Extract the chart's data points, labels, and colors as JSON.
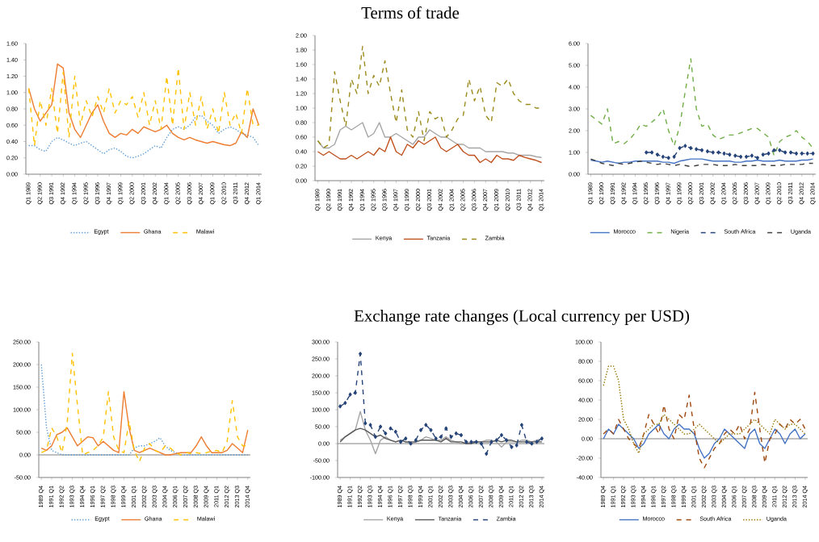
{
  "chart_data": [
    {
      "type": "line",
      "legend": "bottom",
      "ylim": [
        0,
        1.6
      ],
      "yticks": [
        {
          "value": 0,
          "label": "0.00"
        },
        {
          "value": 0.2,
          "label": "0.20"
        },
        {
          "value": 0.4,
          "label": "0.40"
        },
        {
          "value": 0.6,
          "label": "0.60"
        },
        {
          "value": 0.8,
          "label": "0.80"
        },
        {
          "value": 1.0,
          "label": "1.00"
        },
        {
          "value": 1.2,
          "label": "1.20"
        },
        {
          "value": 1.4,
          "label": "1.40"
        },
        {
          "value": 1.6,
          "label": "1.60"
        }
      ],
      "categories": [
        "Q1 1989",
        null,
        "Q2 1990",
        null,
        "Q3 1991",
        null,
        "Q4 1992",
        null,
        "Q1 1994",
        null,
        "Q2 1995",
        null,
        "Q3 1996",
        null,
        "Q4 1997",
        null,
        "Q1 1999",
        null,
        "Q2 2000",
        null,
        "Q3 2001",
        null,
        "Q4 2002",
        null,
        "Q1 2004",
        null,
        "Q2 2005",
        null,
        "Q3 2006",
        null,
        "Q4 2007",
        null,
        "Q1 2009",
        null,
        "Q2 2010",
        null,
        "Q3 2011",
        null,
        "Q4 2012",
        null,
        "Q1 2014"
      ],
      "series": [
        {
          "name": "Egypt",
          "color": "#5b9bd5",
          "line_style": "dotted",
          "values": [
            0.35,
            0.35,
            0.3,
            0.28,
            0.4,
            0.45,
            0.42,
            0.38,
            0.35,
            0.38,
            0.4,
            0.35,
            0.3,
            0.25,
            0.3,
            0.32,
            0.28,
            0.22,
            0.2,
            0.22,
            0.25,
            0.3,
            0.35,
            0.32,
            0.45,
            0.55,
            0.58,
            0.55,
            0.6,
            0.7,
            0.72,
            0.65,
            0.6,
            0.5,
            0.55,
            0.58,
            0.55,
            0.5,
            0.48,
            0.45,
            0.35
          ]
        },
        {
          "name": "Ghana",
          "color": "#ed7d31",
          "line_style": "solid",
          "values": [
            1.05,
            0.8,
            0.65,
            0.75,
            0.85,
            1.35,
            1.3,
            0.75,
            0.55,
            0.45,
            0.6,
            0.75,
            0.85,
            0.65,
            0.5,
            0.45,
            0.5,
            0.48,
            0.55,
            0.5,
            0.58,
            0.55,
            0.52,
            0.55,
            0.6,
            0.5,
            0.45,
            0.42,
            0.45,
            0.42,
            0.4,
            0.38,
            0.4,
            0.38,
            0.36,
            0.35,
            0.38,
            0.52,
            0.45,
            0.8,
            0.6
          ]
        },
        {
          "name": "Malawi",
          "color": "#ffc000",
          "line_style": "dashed",
          "values": [
            1.05,
            0.35,
            0.9,
            0.6,
            1.05,
            0.5,
            1.25,
            0.45,
            1.2,
            0.6,
            0.9,
            0.7,
            0.95,
            0.75,
            1.05,
            0.75,
            0.9,
            0.85,
            0.95,
            0.7,
            1.0,
            0.6,
            0.9,
            0.55,
            1.2,
            0.6,
            1.3,
            0.55,
            1.0,
            0.6,
            0.95,
            0.55,
            0.8,
            0.5,
            1.0,
            0.6,
            0.75,
            0.5,
            1.05,
            0.6,
            0.6
          ]
        }
      ]
    },
    {
      "type": "line",
      "title": "Terms of trade",
      "legend": "bottom",
      "ylim": [
        0,
        2.0
      ],
      "yticks": [
        {
          "value": 0,
          "label": "0.00"
        },
        {
          "value": 0.2,
          "label": "0.20"
        },
        {
          "value": 0.4,
          "label": "0.40"
        },
        {
          "value": 0.6,
          "label": "0.60"
        },
        {
          "value": 0.8,
          "label": "0.80"
        },
        {
          "value": 1.0,
          "label": "1.00"
        },
        {
          "value": 1.2,
          "label": "1.20"
        },
        {
          "value": 1.4,
          "label": "1.40"
        },
        {
          "value": 1.6,
          "label": "1.60"
        },
        {
          "value": 1.8,
          "label": "1.80"
        },
        {
          "value": 2.0,
          "label": "2.00"
        }
      ],
      "categories": [
        "Q1 1989",
        null,
        "Q2 1990",
        null,
        "Q3 1991",
        null,
        "Q4 1992",
        null,
        "Q1 1994",
        null,
        "Q2 1995",
        null,
        "Q3 1996",
        null,
        "Q4 1997",
        null,
        "Q1 1999",
        null,
        "Q2 2000",
        null,
        "Q3 2001",
        null,
        "Q4 2002",
        null,
        "Q1 2004",
        null,
        "Q2 2005",
        null,
        "Q3 2006",
        null,
        "Q4 2007",
        null,
        "Q1 2009",
        null,
        "Q2 2010",
        null,
        "Q3 2011",
        null,
        "Q4 2012",
        null,
        "Q1 2014"
      ],
      "series": [
        {
          "name": "Kenya",
          "color": "#a5a5a5",
          "line_style": "solid",
          "values": [
            0.55,
            0.45,
            0.45,
            0.5,
            0.7,
            0.75,
            0.7,
            0.75,
            0.8,
            0.6,
            0.65,
            0.8,
            0.6,
            0.6,
            0.65,
            0.6,
            0.55,
            0.5,
            0.6,
            0.6,
            0.7,
            0.65,
            0.6,
            0.6,
            0.55,
            0.5,
            0.5,
            0.45,
            0.45,
            0.45,
            0.4,
            0.4,
            0.4,
            0.4,
            0.38,
            0.38,
            0.35,
            0.35,
            0.35,
            0.33,
            0.32
          ]
        },
        {
          "name": "Tanzania",
          "color": "#c0501e",
          "line_style": "solid",
          "values": [
            0.4,
            0.35,
            0.4,
            0.35,
            0.3,
            0.3,
            0.35,
            0.3,
            0.35,
            0.4,
            0.35,
            0.45,
            0.4,
            0.6,
            0.4,
            0.35,
            0.5,
            0.45,
            0.55,
            0.5,
            0.55,
            0.6,
            0.45,
            0.4,
            0.45,
            0.5,
            0.4,
            0.35,
            0.35,
            0.25,
            0.3,
            0.25,
            0.35,
            0.3,
            0.3,
            0.28,
            0.35,
            0.32,
            0.3,
            0.28,
            0.25
          ]
        },
        {
          "name": "Zambia",
          "color": "#9c8a1c",
          "line_style": "dashed",
          "values": [
            0.55,
            0.45,
            0.5,
            1.5,
            1.1,
            0.75,
            1.4,
            1.2,
            1.85,
            1.2,
            1.45,
            1.3,
            1.65,
            1.2,
            0.8,
            1.25,
            0.7,
            0.6,
            0.95,
            0.55,
            0.95,
            0.85,
            0.9,
            0.6,
            0.7,
            0.85,
            0.9,
            1.4,
            1.1,
            1.3,
            0.9,
            0.8,
            1.35,
            1.3,
            1.4,
            1.2,
            1.1,
            1.05,
            1.05,
            1.0,
            1.0
          ]
        }
      ]
    },
    {
      "type": "line",
      "legend": "bottom",
      "ylim": [
        0,
        6
      ],
      "yticks": [
        {
          "value": 0,
          "label": "0.00"
        },
        {
          "value": 1,
          "label": "1.00"
        },
        {
          "value": 2,
          "label": "2.00"
        },
        {
          "value": 3,
          "label": "3.00"
        },
        {
          "value": 4,
          "label": "4.00"
        },
        {
          "value": 5,
          "label": "5.00"
        },
        {
          "value": 6,
          "label": "6.00"
        }
      ],
      "categories": [
        "Q1 1989",
        null,
        "Q2 1990",
        null,
        "Q3 1991",
        null,
        "Q4 1992",
        null,
        "Q1 1994",
        null,
        "Q2 1995",
        null,
        "Q3 1996",
        null,
        "Q4 1997",
        null,
        "Q1 1999",
        null,
        "Q2 2000",
        null,
        "Q3 2001",
        null,
        "Q4 2002",
        null,
        "Q1 2004",
        null,
        "Q2 2005",
        null,
        "Q3 2006",
        null,
        "Q4 2007",
        null,
        "Q1 2009",
        null,
        "Q2 2010",
        null,
        "Q3 2011",
        null,
        "Q4 2012",
        null,
        "Q1 2014"
      ],
      "series": [
        {
          "name": "Morocco",
          "color": "#4472c4",
          "line_style": "solid",
          "values": [
            0.65,
            0.6,
            0.55,
            0.6,
            0.55,
            0.5,
            0.55,
            0.55,
            0.6,
            0.6,
            0.6,
            0.6,
            0.6,
            0.55,
            0.55,
            0.5,
            0.6,
            0.65,
            0.7,
            0.7,
            0.7,
            0.65,
            0.6,
            0.6,
            0.6,
            0.6,
            0.55,
            0.55,
            0.6,
            0.6,
            0.65,
            0.6,
            0.6,
            0.6,
            0.65,
            0.6,
            0.6,
            0.6,
            0.65,
            0.65,
            0.7
          ]
        },
        {
          "name": "Nigeria",
          "color": "#70ad47",
          "line_style": "dashed",
          "values": [
            2.7,
            2.5,
            2.3,
            3.0,
            1.4,
            1.5,
            1.4,
            1.6,
            1.9,
            2.3,
            2.2,
            2.4,
            2.6,
            3.0,
            2.0,
            1.3,
            2.2,
            3.8,
            5.3,
            3.0,
            2.2,
            2.3,
            1.8,
            1.6,
            1.7,
            1.8,
            1.8,
            1.9,
            2.0,
            2.1,
            2.1,
            1.9,
            1.7,
            0.85,
            1.5,
            1.7,
            1.8,
            2.0,
            1.7,
            1.5,
            1.2
          ]
        },
        {
          "name": "South Africa",
          "color": "#264478",
          "line_style": "dashed",
          "marker": "diamond",
          "values": [
            null,
            null,
            null,
            null,
            null,
            null,
            null,
            null,
            null,
            null,
            1.0,
            1.0,
            0.9,
            0.8,
            0.75,
            0.8,
            1.2,
            1.3,
            1.2,
            1.15,
            1.1,
            1.05,
            1.0,
            1.0,
            0.95,
            0.9,
            0.85,
            0.8,
            0.8,
            0.85,
            0.75,
            0.9,
            0.95,
            1.1,
            1.1,
            1.0,
            1.0,
            0.95,
            0.95,
            0.95,
            0.95
          ]
        },
        {
          "name": "Uganda",
          "color": "#404040",
          "line_style": "dashed",
          "values": [
            0.7,
            0.6,
            0.5,
            0.45,
            0.4,
            0.5,
            0.45,
            0.5,
            0.55,
            0.6,
            0.55,
            0.5,
            0.45,
            0.5,
            0.45,
            0.4,
            0.45,
            0.4,
            0.35,
            0.4,
            0.45,
            0.45,
            0.45,
            0.4,
            0.4,
            0.4,
            0.45,
            0.4,
            0.4,
            0.4,
            0.4,
            0.45,
            0.4,
            0.4,
            0.4,
            0.45,
            0.45,
            0.45,
            0.45,
            0.5,
            0.5
          ]
        }
      ]
    },
    {
      "type": "line",
      "legend": "bottom",
      "ylim": [
        -50,
        250
      ],
      "yticks": [
        {
          "value": -50,
          "label": "-50.00"
        },
        {
          "value": 0,
          "label": "0.00"
        },
        {
          "value": 50,
          "label": "50.00"
        },
        {
          "value": 100,
          "label": "100.00"
        },
        {
          "value": 150,
          "label": "150.00"
        },
        {
          "value": 200,
          "label": "200.00"
        },
        {
          "value": 250,
          "label": "250.00"
        }
      ],
      "categories": [
        "1989 Q4",
        null,
        "1991 Q1",
        null,
        "1992 Q2",
        null,
        "1993 Q3",
        null,
        "1994 Q4",
        null,
        "1996 Q1",
        null,
        "1997 Q2",
        null,
        "1998 Q3",
        null,
        "1999 Q4",
        null,
        "2001 Q1",
        null,
        "2002 Q2",
        null,
        "2003 Q3",
        null,
        "2004 Q4",
        null,
        "2006 Q1",
        null,
        "2007 Q2",
        null,
        "2008 Q3",
        null,
        "2009 Q4",
        null,
        "2011 Q1",
        null,
        "2012 Q2",
        null,
        "2013 Q3",
        null,
        "2014 Q4"
      ],
      "series": [
        {
          "name": "Egypt",
          "color": "#5b9bd5",
          "line_style": "dotted",
          "values": [
            200,
            60,
            10,
            5,
            0,
            0,
            0,
            0,
            0,
            0,
            0,
            0,
            0,
            0,
            0,
            0,
            0,
            0,
            15,
            20,
            20,
            25,
            30,
            38,
            20,
            10,
            5,
            0,
            0,
            0,
            0,
            0,
            0,
            0,
            0,
            0,
            0,
            0,
            0,
            0,
            0
          ]
        },
        {
          "name": "Ghana",
          "color": "#ed7d31",
          "line_style": "solid",
          "values": [
            15,
            10,
            20,
            45,
            50,
            60,
            40,
            20,
            30,
            40,
            38,
            20,
            30,
            20,
            10,
            5,
            140,
            60,
            10,
            5,
            10,
            15,
            10,
            5,
            0,
            0,
            3,
            5,
            5,
            5,
            20,
            40,
            20,
            5,
            5,
            5,
            10,
            25,
            15,
            5,
            55
          ]
        },
        {
          "name": "Malawi",
          "color": "#ffc000",
          "line_style": "dashed",
          "values": [
            5,
            10,
            60,
            40,
            5,
            70,
            225,
            110,
            0,
            5,
            10,
            20,
            40,
            140,
            40,
            10,
            5,
            75,
            10,
            -15,
            15,
            25,
            10,
            5,
            20,
            15,
            5,
            0,
            5,
            3,
            5,
            3,
            5,
            8,
            10,
            5,
            30,
            120,
            40,
            20,
            20
          ]
        }
      ]
    },
    {
      "type": "line",
      "title": "Exchange rate changes (Local currency per USD)",
      "legend": "bottom",
      "ylim": [
        -100,
        300
      ],
      "yticks": [
        {
          "value": -100,
          "label": "-100.00"
        },
        {
          "value": -50,
          "label": "-50.00"
        },
        {
          "value": 0,
          "label": "0.00"
        },
        {
          "value": 50,
          "label": "50.00"
        },
        {
          "value": 100,
          "label": "100.00"
        },
        {
          "value": 150,
          "label": "150.00"
        },
        {
          "value": 200,
          "label": "200.00"
        },
        {
          "value": 250,
          "label": "250.00"
        },
        {
          "value": 300,
          "label": "300.00"
        }
      ],
      "categories": [
        "1989 Q4",
        null,
        "1991 Q1",
        null,
        "1992 Q2",
        null,
        "1993 Q3",
        null,
        "1994 Q4",
        null,
        "1996 Q1",
        null,
        "1997 Q2",
        null,
        "1998 Q3",
        null,
        "1999 Q4",
        null,
        "2001 Q1",
        null,
        "2002 Q2",
        null,
        "2003 Q3",
        null,
        "2004 Q4",
        null,
        "2006 Q1",
        null,
        "2007 Q2",
        null,
        "2008 Q3",
        null,
        "2009 Q4",
        null,
        "2011 Q1",
        null,
        "2012 Q2",
        null,
        "2013 Q3",
        null,
        "2014 Q4"
      ],
      "series": [
        {
          "name": "Kenya",
          "color": "#a5a5a5",
          "line_style": "solid",
          "values": [
            10,
            20,
            30,
            40,
            95,
            40,
            10,
            -30,
            10,
            20,
            10,
            5,
            10,
            5,
            0,
            5,
            10,
            20,
            15,
            10,
            10,
            20,
            10,
            5,
            0,
            0,
            5,
            5,
            5,
            10,
            10,
            5,
            -10,
            5,
            5,
            5,
            10,
            10,
            5,
            10,
            15
          ]
        },
        {
          "name": "Tanzania",
          "color": "#595959",
          "line_style": "solid",
          "values": [
            5,
            20,
            30,
            40,
            45,
            40,
            30,
            20,
            25,
            15,
            10,
            5,
            10,
            5,
            5,
            5,
            10,
            10,
            10,
            10,
            5,
            15,
            5,
            5,
            5,
            0,
            0,
            5,
            5,
            5,
            5,
            10,
            5,
            10,
            10,
            5,
            5,
            5,
            5,
            5,
            5
          ]
        },
        {
          "name": "Zambia",
          "color": "#264478",
          "line_style": "dashed",
          "marker": "diamond",
          "values": [
            110,
            120,
            145,
            150,
            265,
            60,
            55,
            20,
            50,
            30,
            45,
            35,
            5,
            15,
            0,
            10,
            40,
            55,
            40,
            15,
            20,
            45,
            20,
            30,
            25,
            5,
            5,
            5,
            0,
            -30,
            5,
            10,
            25,
            10,
            -10,
            -5,
            55,
            5,
            0,
            5,
            15
          ]
        }
      ]
    },
    {
      "type": "line",
      "legend": "bottom",
      "ylim": [
        -40,
        100
      ],
      "yticks": [
        {
          "value": -40,
          "label": "-40.00"
        },
        {
          "value": -20,
          "label": "-20.00"
        },
        {
          "value": 0,
          "label": "0.00"
        },
        {
          "value": 20,
          "label": "20.00"
        },
        {
          "value": 40,
          "label": "40.00"
        },
        {
          "value": 60,
          "label": "60.00"
        },
        {
          "value": 80,
          "label": "80.00"
        },
        {
          "value": 100,
          "label": "100.00"
        }
      ],
      "categories": [
        "1989 Q4",
        null,
        "1991 Q1",
        null,
        "1992 Q2",
        null,
        "1993 Q3",
        null,
        "1994 Q4",
        null,
        "1996 Q1",
        null,
        "1997 Q2",
        null,
        "1998 Q3",
        null,
        "1999 Q4",
        null,
        "2001 Q1",
        null,
        "2002 Q2",
        null,
        "2003 Q3",
        null,
        "2004 Q4",
        null,
        "2006 Q1",
        null,
        "2007 Q2",
        null,
        "2008 Q3",
        null,
        "2009 Q4",
        null,
        "2011 Q1",
        null,
        "2012 Q2",
        null,
        "2013 Q3",
        null,
        "2014 Q4"
      ],
      "series": [
        {
          "name": "Morocco",
          "color": "#4472c4",
          "line_style": "solid",
          "values": [
            0,
            10,
            5,
            15,
            10,
            5,
            0,
            -10,
            -5,
            5,
            10,
            15,
            5,
            0,
            10,
            15,
            10,
            10,
            5,
            -10,
            -20,
            -15,
            -5,
            0,
            10,
            5,
            0,
            -5,
            -10,
            5,
            10,
            -5,
            -10,
            0,
            10,
            5,
            -5,
            5,
            10,
            0,
            5
          ]
        },
        {
          "name": "South Africa",
          "color": "#9e480e",
          "line_style": "dashed",
          "values": [
            5,
            10,
            5,
            20,
            10,
            0,
            -5,
            -10,
            5,
            25,
            15,
            5,
            35,
            10,
            0,
            25,
            20,
            45,
            10,
            -20,
            -30,
            -20,
            -10,
            -5,
            5,
            10,
            5,
            15,
            0,
            10,
            48,
            10,
            -25,
            0,
            5,
            15,
            10,
            20,
            15,
            20,
            10
          ]
        },
        {
          "name": "Uganda",
          "color": "#997300",
          "line_style": "dotted",
          "values": [
            55,
            75,
            75,
            60,
            20,
            10,
            -5,
            -15,
            5,
            10,
            15,
            15,
            25,
            20,
            15,
            10,
            5,
            5,
            10,
            15,
            10,
            5,
            0,
            -5,
            0,
            5,
            5,
            5,
            10,
            15,
            20,
            15,
            10,
            5,
            20,
            15,
            10,
            15,
            15,
            10,
            5
          ]
        }
      ]
    }
  ]
}
